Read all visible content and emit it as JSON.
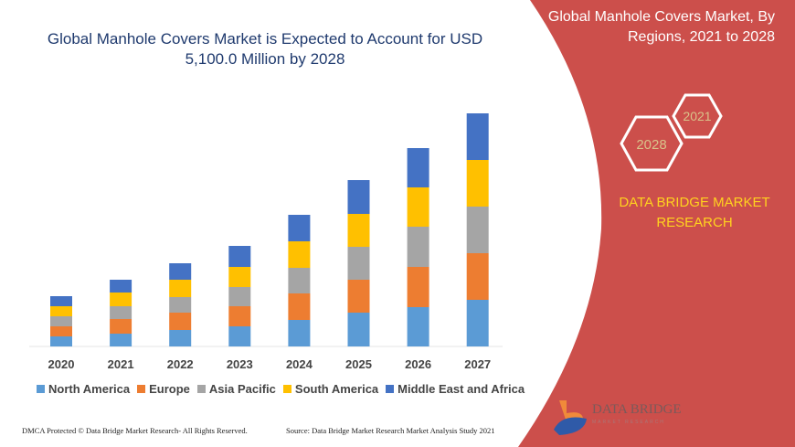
{
  "title": "Global Manhole Covers Market is Expected to Account for USD 5,100.0 Million by 2028",
  "side_panel": {
    "title": "Global Manhole Covers Market, By Regions, 2021 to 2028",
    "hex_years": [
      "2028",
      "2021"
    ],
    "brand": "DATA BRIDGE MARKET RESEARCH",
    "logo_text": "DATA BRIDGE",
    "logo_sub": "MARKET RESEARCH",
    "color": "#cc4f4b"
  },
  "footer": {
    "left": "DMCA Protected © Data Bridge Market Research- All Rights Reserved.",
    "right": "Source: Data Bridge Market Research Market Analysis Study 2021"
  },
  "chart_data": {
    "type": "bar",
    "stacked": true,
    "title": "",
    "xlabel": "",
    "ylabel": "",
    "grid": false,
    "legend_position": "bottom",
    "ylim": [
      0,
      260
    ],
    "categories": [
      "2020",
      "2021",
      "2022",
      "2023",
      "2024",
      "2025",
      "2026",
      "2027"
    ],
    "series": [
      {
        "name": "North America",
        "color": "#5b9bd5",
        "values": [
          11,
          14,
          18,
          22,
          29,
          37,
          43,
          51
        ]
      },
      {
        "name": "Europe",
        "color": "#ed7d31",
        "values": [
          11,
          16,
          19,
          22,
          29,
          36,
          44,
          51
        ]
      },
      {
        "name": "Asia Pacific",
        "color": "#a5a5a5",
        "values": [
          11,
          14,
          17,
          21,
          28,
          36,
          44,
          51
        ]
      },
      {
        "name": "South America",
        "color": "#ffc000",
        "values": [
          11,
          15,
          19,
          22,
          29,
          36,
          43,
          51
        ]
      },
      {
        "name": "Middle East and Africa",
        "color": "#4472c4",
        "values": [
          11,
          14,
          18,
          23,
          29,
          37,
          43,
          51
        ]
      }
    ]
  }
}
